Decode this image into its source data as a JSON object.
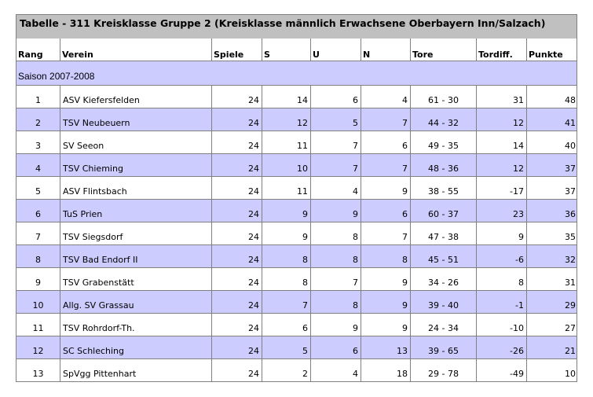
{
  "title": "Tabelle - 311 Kreisklasse Gruppe 2 (Kreisklasse männlich Erwachsene Oberbayern Inn/Salzach)",
  "headers": [
    "Rang",
    "Verein",
    "Spiele",
    "S",
    "U",
    "N",
    "Tore",
    "Tordiff.",
    "Punkte"
  ],
  "season": "Saison 2007-2008",
  "colors": {
    "title_bg": "#c0c0c0",
    "alt_row_bg": "#ccccff",
    "border": "#808080"
  },
  "rows": [
    {
      "rang": "1",
      "verein": "ASV Kiefersfelden",
      "spiele": "24",
      "s": "14",
      "u": "6",
      "n": "4",
      "tore": "61 - 30",
      "tordiff": "31",
      "punkte": "48"
    },
    {
      "rang": "2",
      "verein": "TSV Neubeuern",
      "spiele": "24",
      "s": "12",
      "u": "5",
      "n": "7",
      "tore": "44 - 32",
      "tordiff": "12",
      "punkte": "41"
    },
    {
      "rang": "3",
      "verein": "SV Seeon",
      "spiele": "24",
      "s": "11",
      "u": "7",
      "n": "6",
      "tore": "49 - 35",
      "tordiff": "14",
      "punkte": "40"
    },
    {
      "rang": "4",
      "verein": "TSV Chieming",
      "spiele": "24",
      "s": "10",
      "u": "7",
      "n": "7",
      "tore": "48 - 36",
      "tordiff": "12",
      "punkte": "37"
    },
    {
      "rang": "5",
      "verein": "ASV Flintsbach",
      "spiele": "24",
      "s": "11",
      "u": "4",
      "n": "9",
      "tore": "38 - 55",
      "tordiff": "-17",
      "punkte": "37"
    },
    {
      "rang": "6",
      "verein": "TuS Prien",
      "spiele": "24",
      "s": "9",
      "u": "9",
      "n": "6",
      "tore": "60 - 37",
      "tordiff": "23",
      "punkte": "36"
    },
    {
      "rang": "7",
      "verein": "TSV Siegsdorf",
      "spiele": "24",
      "s": "9",
      "u": "8",
      "n": "7",
      "tore": "47 - 38",
      "tordiff": "9",
      "punkte": "35"
    },
    {
      "rang": "8",
      "verein": "TSV Bad Endorf II",
      "spiele": "24",
      "s": "8",
      "u": "8",
      "n": "8",
      "tore": "45 - 51",
      "tordiff": "-6",
      "punkte": "32"
    },
    {
      "rang": "9",
      "verein": "TSV Grabenstätt",
      "spiele": "24",
      "s": "8",
      "u": "7",
      "n": "9",
      "tore": "34 - 26",
      "tordiff": "8",
      "punkte": "31"
    },
    {
      "rang": "10",
      "verein": "Allg. SV Grassau",
      "spiele": "24",
      "s": "7",
      "u": "8",
      "n": "9",
      "tore": "39 - 40",
      "tordiff": "-1",
      "punkte": "29"
    },
    {
      "rang": "11",
      "verein": "TSV Rohrdorf-Th.",
      "spiele": "24",
      "s": "6",
      "u": "9",
      "n": "9",
      "tore": "24 - 34",
      "tordiff": "-10",
      "punkte": "27"
    },
    {
      "rang": "12",
      "verein": "SC Schleching",
      "spiele": "24",
      "s": "5",
      "u": "6",
      "n": "13",
      "tore": "39 - 65",
      "tordiff": "-26",
      "punkte": "21"
    },
    {
      "rang": "13",
      "verein": "SpVgg Pittenhart",
      "spiele": "24",
      "s": "2",
      "u": "4",
      "n": "18",
      "tore": "29 - 78",
      "tordiff": "-49",
      "punkte": "10"
    }
  ]
}
